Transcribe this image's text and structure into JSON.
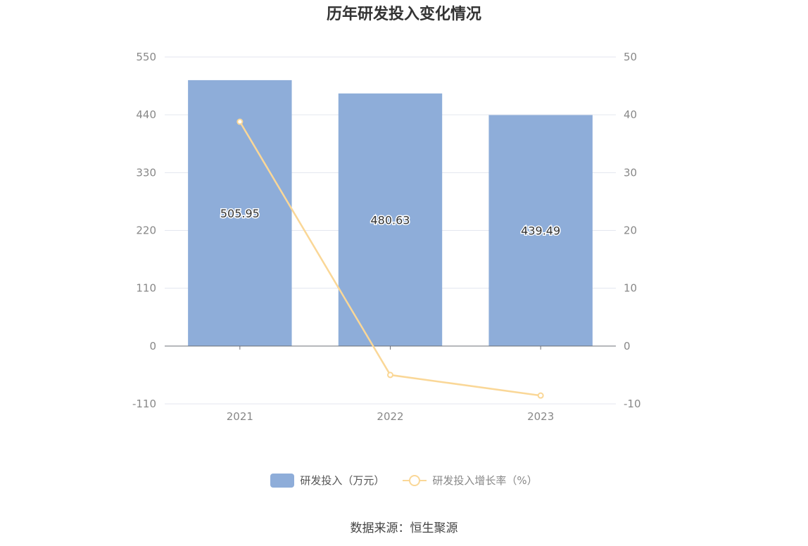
{
  "chart_data": {
    "title": "历年研发投入变化情况",
    "type": "bar",
    "categories": [
      "2021",
      "2022",
      "2023"
    ],
    "series": [
      {
        "name": "研发投入（万元）",
        "type": "bar",
        "axis": "left",
        "values": [
          505.95,
          480.63,
          439.49
        ],
        "labels": [
          "505.95",
          "480.63",
          "439.49"
        ],
        "color": "#8eadd9"
      },
      {
        "name": "研发投入增长率（%）",
        "type": "line",
        "axis": "right",
        "values": [
          38.8,
          -5.0,
          -8.56
        ],
        "color": "#fad797"
      }
    ],
    "y_left": {
      "ylim": [
        -110,
        550
      ],
      "ticks": [
        "-110",
        "0",
        "110",
        "220",
        "330",
        "440",
        "550"
      ]
    },
    "y_right": {
      "ylim": [
        -10,
        50
      ],
      "ticks": [
        "-10",
        "0",
        "10",
        "20",
        "30",
        "40",
        "50"
      ]
    },
    "grid": true,
    "legend": "bottom-center"
  },
  "source": "数据来源：恒生聚源"
}
